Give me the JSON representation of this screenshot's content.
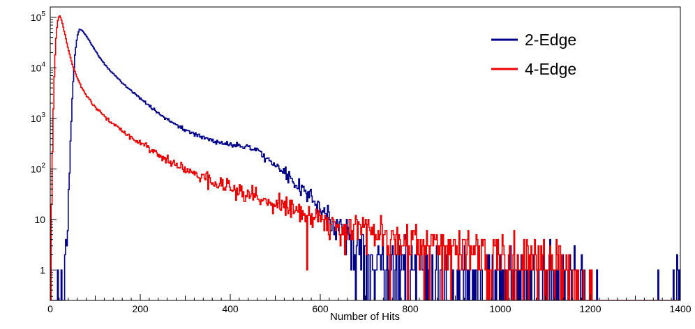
{
  "chart_data": {
    "type": "line",
    "title": "",
    "xlabel": "Number of Hits",
    "ylabel": "",
    "y_scale": "log",
    "xlim": [
      0,
      1400
    ],
    "ylim_log": [
      0.25,
      160000
    ],
    "x_major_ticks": [
      0,
      200,
      400,
      600,
      800,
      1000,
      1200,
      1400
    ],
    "x_minor_step": 20,
    "y_major_ticks": [
      1,
      10,
      100,
      1000,
      10000,
      100000
    ],
    "grid": false,
    "legend_position": "top-right",
    "bin_width": 2,
    "noise_seed": 12345,
    "noise_scale": 1.3,
    "legend": [
      {
        "label": "2-Edge",
        "color": "#00008b"
      },
      {
        "label": "4-Edge",
        "color": "#ee0000"
      }
    ],
    "series": [
      {
        "name": "2-Edge",
        "color": "#00008b",
        "anchors": [
          [
            0,
            0.01
          ],
          [
            25,
            0.05
          ],
          [
            32,
            0.5
          ],
          [
            38,
            8
          ],
          [
            42,
            60
          ],
          [
            46,
            600
          ],
          [
            50,
            4000
          ],
          [
            55,
            18000
          ],
          [
            60,
            42000
          ],
          [
            65,
            58000
          ],
          [
            70,
            56000
          ],
          [
            75,
            50000
          ],
          [
            80,
            43000
          ],
          [
            90,
            31000
          ],
          [
            100,
            22000
          ],
          [
            110,
            16000
          ],
          [
            120,
            12000
          ],
          [
            135,
            8500
          ],
          [
            150,
            6200
          ],
          [
            170,
            4200
          ],
          [
            200,
            2500
          ],
          [
            230,
            1500
          ],
          [
            260,
            950
          ],
          [
            290,
            650
          ],
          [
            320,
            480
          ],
          [
            350,
            390
          ],
          [
            380,
            330
          ],
          [
            410,
            300
          ],
          [
            440,
            280
          ],
          [
            470,
            200
          ],
          [
            500,
            120
          ],
          [
            530,
            70
          ],
          [
            560,
            38
          ],
          [
            590,
            20
          ],
          [
            620,
            11
          ],
          [
            650,
            6
          ],
          [
            680,
            3.5
          ],
          [
            710,
            2.2
          ],
          [
            740,
            1.6
          ],
          [
            770,
            1.4
          ],
          [
            800,
            1.5
          ],
          [
            840,
            1.4
          ],
          [
            870,
            1.0
          ],
          [
            900,
            0.7
          ],
          [
            940,
            0.5
          ],
          [
            980,
            0.45
          ],
          [
            1020,
            0.5
          ],
          [
            1060,
            0.6
          ],
          [
            1100,
            0.7
          ],
          [
            1140,
            0.6
          ],
          [
            1170,
            0.4
          ],
          [
            1200,
            0.45
          ],
          [
            1215,
            0.1
          ],
          [
            1260,
            0.01
          ],
          [
            1350,
            0.01
          ],
          [
            1388,
            0.02
          ],
          [
            1392,
            0.9
          ],
          [
            1398,
            0.9
          ],
          [
            1400,
            0.1
          ]
        ]
      },
      {
        "name": "4-Edge",
        "color": "#ee0000",
        "anchors": [
          [
            0,
            0.3
          ],
          [
            4,
            80
          ],
          [
            8,
            4000
          ],
          [
            12,
            30000
          ],
          [
            16,
            80000
          ],
          [
            20,
            110000
          ],
          [
            24,
            95000
          ],
          [
            28,
            70000
          ],
          [
            33,
            45000
          ],
          [
            38,
            28000
          ],
          [
            44,
            17000
          ],
          [
            50,
            11000
          ],
          [
            58,
            7000
          ],
          [
            66,
            4800
          ],
          [
            75,
            3400
          ],
          [
            85,
            2500
          ],
          [
            95,
            1900
          ],
          [
            110,
            1350
          ],
          [
            125,
            1000
          ],
          [
            140,
            780
          ],
          [
            160,
            560
          ],
          [
            180,
            420
          ],
          [
            200,
            320
          ],
          [
            225,
            230
          ],
          [
            250,
            170
          ],
          [
            275,
            130
          ],
          [
            300,
            100
          ],
          [
            330,
            75
          ],
          [
            360,
            57
          ],
          [
            390,
            44
          ],
          [
            420,
            35
          ],
          [
            450,
            28
          ],
          [
            480,
            23
          ],
          [
            510,
            19
          ],
          [
            540,
            15
          ],
          [
            570,
            12.5
          ],
          [
            600,
            10
          ],
          [
            640,
            8
          ],
          [
            680,
            6.5
          ],
          [
            720,
            5.5
          ],
          [
            760,
            4.6
          ],
          [
            800,
            4
          ],
          [
            840,
            3.5
          ],
          [
            880,
            3.1
          ],
          [
            920,
            2.8
          ],
          [
            960,
            2.5
          ],
          [
            1000,
            2.3
          ],
          [
            1040,
            2.0
          ],
          [
            1080,
            1.8
          ],
          [
            1110,
            1.5
          ],
          [
            1140,
            1.1
          ],
          [
            1155,
            0.6
          ],
          [
            1165,
            0.2
          ],
          [
            1180,
            0.05
          ],
          [
            1250,
            0.01
          ],
          [
            1400,
            0.01
          ]
        ]
      }
    ]
  }
}
